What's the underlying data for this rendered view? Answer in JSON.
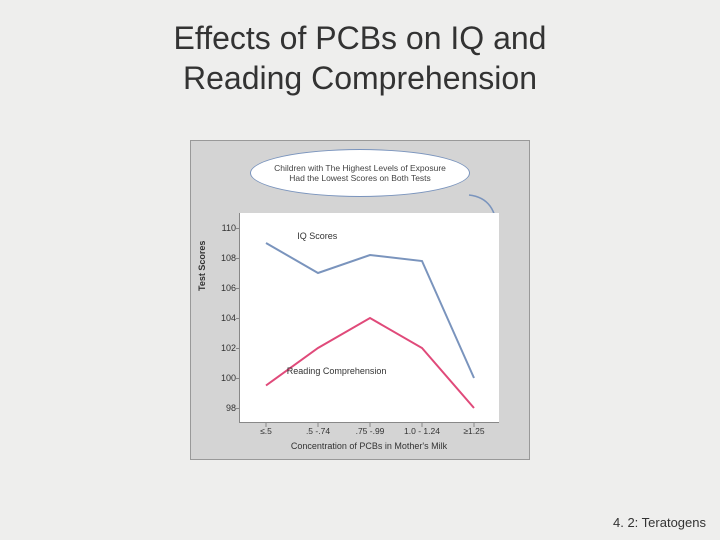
{
  "title_line1": "Effects of PCBs on IQ and",
  "title_line2": "Reading Comprehension",
  "footer": "4. 2: Teratogens",
  "callout_text": "Children with The Highest Levels of Exposure Had the Lowest Scores on Both Tests",
  "chart": {
    "type": "line",
    "background_color": "#d4d4d4",
    "plot_background": "#ffffff",
    "ylabel": "Test Scores",
    "xlabel": "Concentration of PCBs in Mother's Milk",
    "ylim": [
      97,
      111
    ],
    "yticks": [
      98,
      100,
      102,
      104,
      106,
      108,
      110
    ],
    "categories": [
      "≤.5",
      ".5 -.74",
      ".75 -.99",
      "1.0 - 1.24",
      "≥1.25"
    ],
    "series": [
      {
        "name": "IQ Scores",
        "label": "IQ Scores",
        "color": "#7a94bd",
        "line_width": 2,
        "values": [
          109.0,
          107.0,
          108.2,
          107.8,
          100.0
        ],
        "label_x": 0.22,
        "label_y": 109.8
      },
      {
        "name": "Reading Comprehension",
        "label": "Reading Comprehension",
        "color": "#e04a7a",
        "line_width": 2,
        "values": [
          99.5,
          102.0,
          104.0,
          102.0,
          98.0
        ],
        "label_x": 0.18,
        "label_y": 100.8
      }
    ],
    "callout_border": "#7a94bd",
    "axis_color": "#888888",
    "tick_font_size": 9
  }
}
